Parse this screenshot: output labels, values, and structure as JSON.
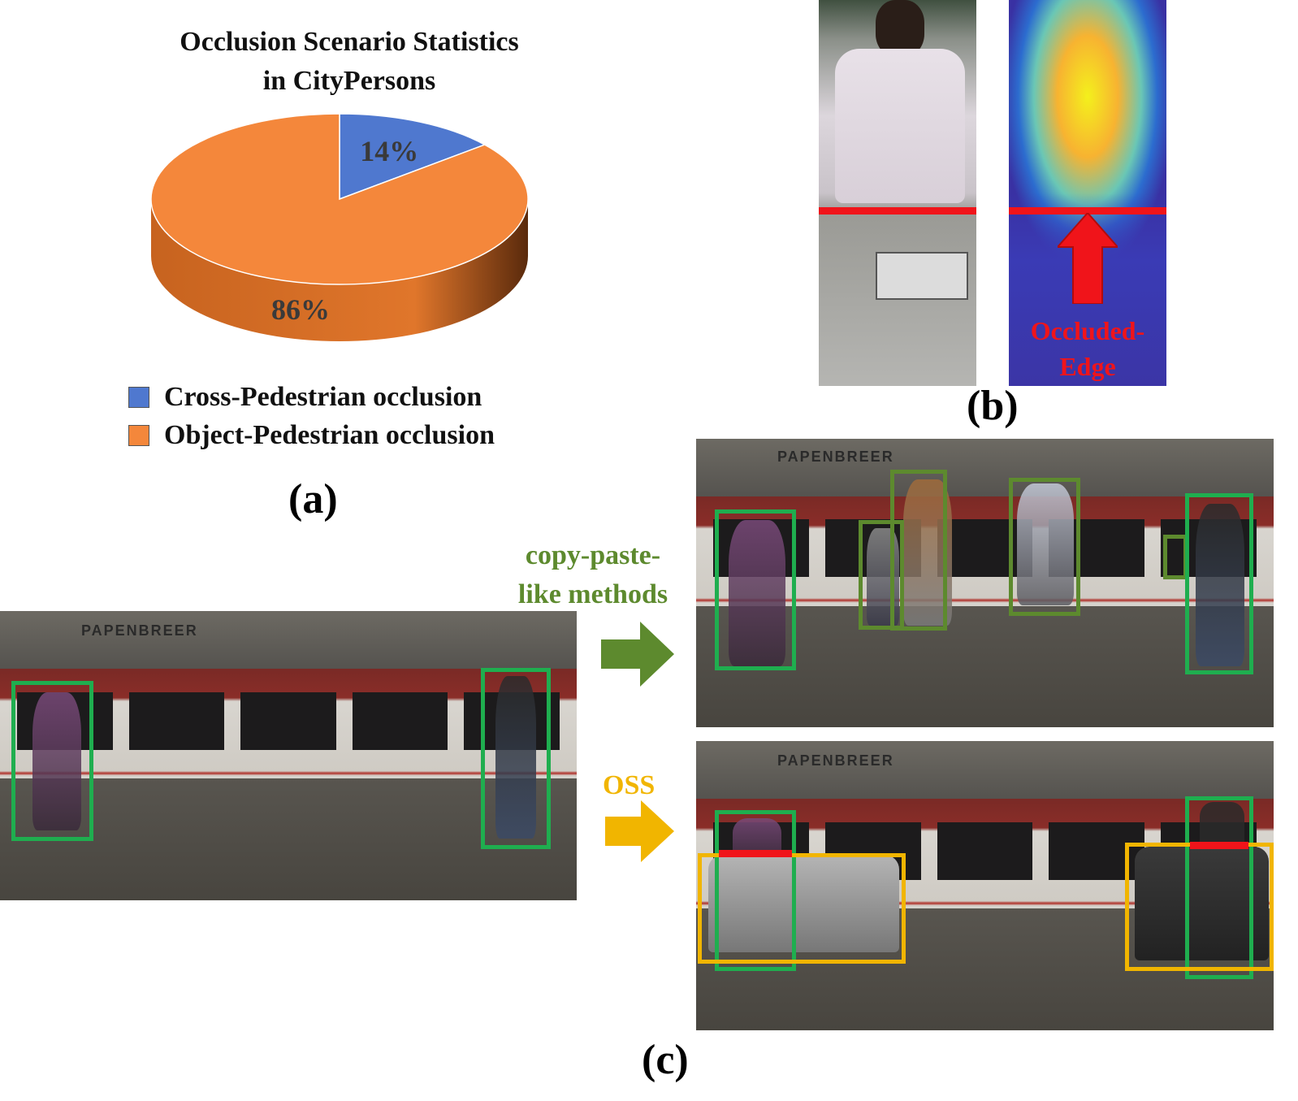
{
  "colors": {
    "cross_pedestrian": "#4f78cf",
    "object_pedestrian": "#f4873b",
    "green_box": "#1fae4f",
    "olive_box": "#5d8a2e",
    "yellow_box": "#f1b500",
    "red_edge": "#f0141a",
    "copy_paste_text": "#5d8a2e",
    "oss_text": "#f1b500"
  },
  "chart_data": {
    "type": "pie",
    "title": "Occlusion Scenario Statistics in CityPersons",
    "title_lines": [
      "Occlusion Scenario Statistics",
      "in CityPersons"
    ],
    "slices": [
      {
        "label": "Cross-Pedestrian occlusion",
        "value": 14,
        "display": "14%"
      },
      {
        "label": "Object-Pedestrian occlusion",
        "value": 86,
        "display": "86%"
      }
    ],
    "legend_placement": "bottom"
  },
  "panel_labels": {
    "a": "(a)",
    "b": "(b)",
    "c": "(c)"
  },
  "annotations": {
    "occluded_edge_line1": "Occluded-",
    "occluded_edge_line2": "Edge",
    "copy_paste_line1": "copy-paste-",
    "copy_paste_line2": "like methods",
    "oss": "OSS",
    "store_sign": "PAPENBREER"
  }
}
